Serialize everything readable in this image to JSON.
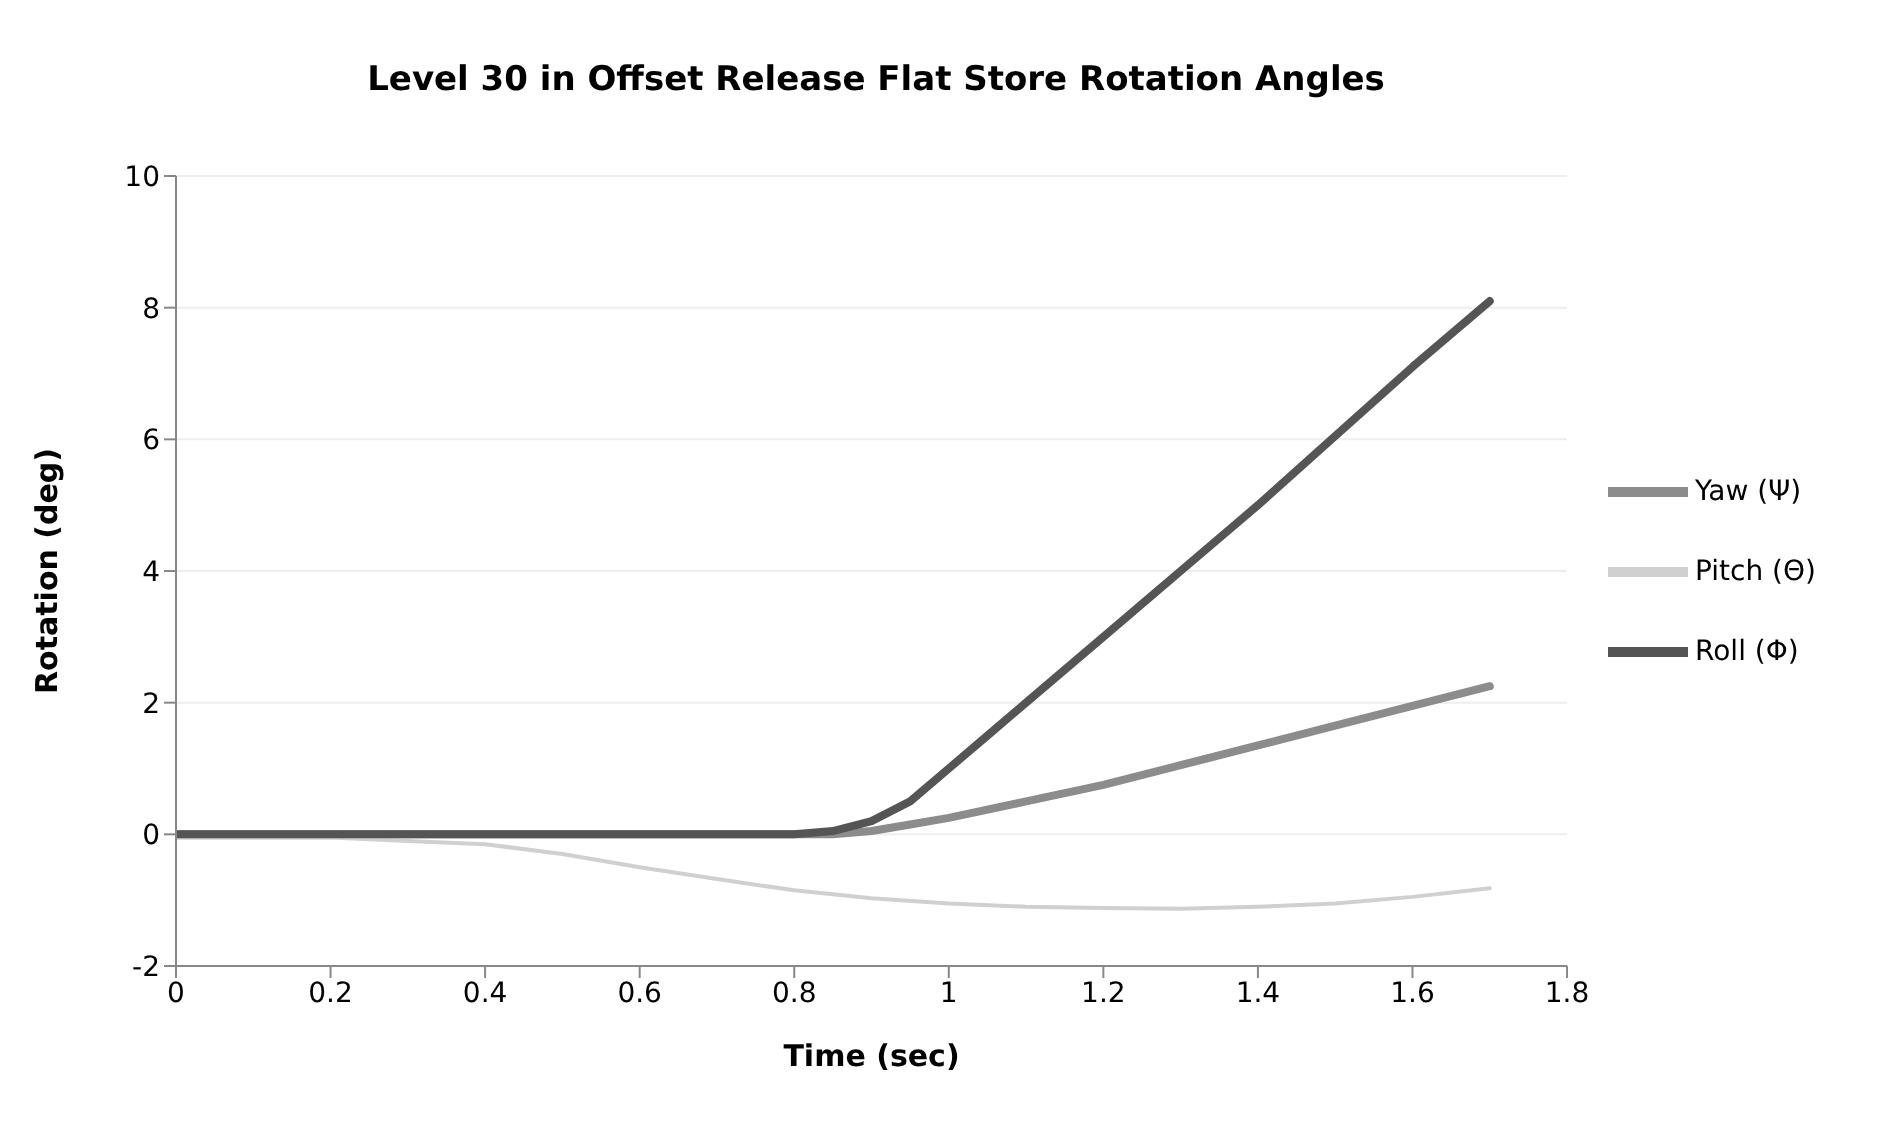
{
  "chart_data": {
    "type": "line",
    "title": "Level 30 in Offset Release Flat Store Rotation Angles",
    "xlabel": "Time (sec)",
    "ylabel": "Rotation (deg)",
    "xlim": [
      0,
      1.8
    ],
    "xticks": [
      0,
      0.2,
      0.4,
      0.6,
      0.8,
      1,
      1.2,
      1.4,
      1.6,
      1.8
    ],
    "ylim": [
      -2,
      10
    ],
    "yticks": [
      -2,
      0,
      2,
      4,
      6,
      8,
      10
    ],
    "grid": "y",
    "legend": "right",
    "marker": "none",
    "line_style": "solid",
    "series": [
      {
        "name": "Yaw (Ψ)",
        "color": "#8c8c8c",
        "x": [
          0,
          0.2,
          0.4,
          0.6,
          0.8,
          0.85,
          0.9,
          0.95,
          1.0,
          1.1,
          1.2,
          1.3,
          1.4,
          1.5,
          1.6,
          1.7
        ],
        "values": [
          0,
          0,
          0,
          0,
          0,
          0,
          0.05,
          0.15,
          0.25,
          0.5,
          0.75,
          1.05,
          1.35,
          1.65,
          1.95,
          2.25
        ]
      },
      {
        "name": "Pitch (Θ)",
        "color": "#d0d0d0",
        "x": [
          0,
          0.2,
          0.3,
          0.4,
          0.5,
          0.6,
          0.7,
          0.8,
          0.9,
          1.0,
          1.1,
          1.2,
          1.3,
          1.4,
          1.5,
          1.6,
          1.7
        ],
        "values": [
          -0.05,
          -0.05,
          -0.1,
          -0.15,
          -0.3,
          -0.5,
          -0.68,
          -0.85,
          -0.97,
          -1.05,
          -1.1,
          -1.12,
          -1.13,
          -1.1,
          -1.05,
          -0.95,
          -0.82
        ]
      },
      {
        "name": "Roll (Φ)",
        "color": "#555555",
        "x": [
          0,
          0.2,
          0.4,
          0.6,
          0.8,
          0.85,
          0.9,
          0.95,
          1.0,
          1.05,
          1.1,
          1.2,
          1.3,
          1.4,
          1.5,
          1.6,
          1.7
        ],
        "values": [
          0,
          0,
          0,
          0,
          0,
          0.05,
          0.2,
          0.5,
          1.0,
          1.5,
          2.0,
          3.0,
          4.0,
          5.0,
          6.05,
          7.1,
          8.1
        ]
      }
    ]
  }
}
